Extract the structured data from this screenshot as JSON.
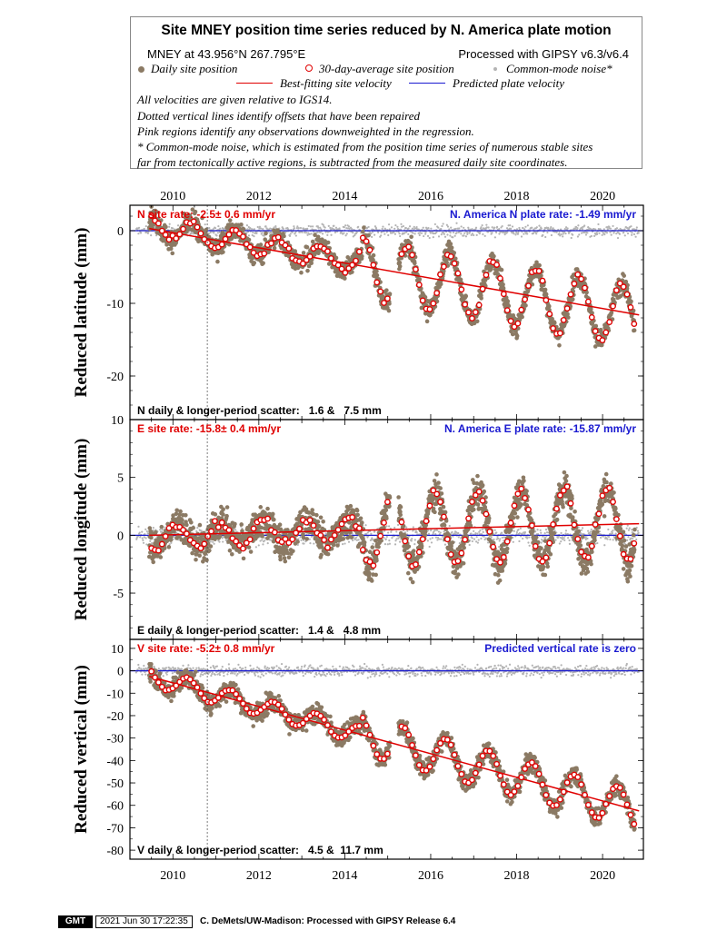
{
  "legend": {
    "title": "Site MNEY position time series reduced by N. America plate motion",
    "site_line": "MNEY at 43.956°N 267.795°E",
    "processed": "Processed with GIPSY v6.3/v6.4",
    "daily": "Daily site position",
    "avg": "30-day-average site position",
    "cm": "Common-mode noise*",
    "best": "Best-fitting site velocity",
    "pred": "Predicted plate velocity",
    "notes": [
      "All velocities are given relative to IGS14.",
      "Dotted vertical lines identify offsets that have been repaired",
      "Pink regions identify any observations downweighted in the regression.",
      "* Common-mode noise, which is estimated from the position time series of numerous stable sites",
      "far from tectonically active regions, is subtracted from the measured daily site coordinates."
    ]
  },
  "colors": {
    "daily": "#8b7a64",
    "avg_edge": "#e00000",
    "cm": "#b4b4b4",
    "best": "#e00000",
    "pred": "#1a1ad0",
    "label_red": "#e00000",
    "label_blue": "#1a1ad0"
  },
  "footer": {
    "logo": "GMT",
    "stamp": "2021 Jun 30 17:22:35",
    "credit": "C. DeMets/UW-Madison: Processed with GIPSY Release 6.4"
  },
  "chart_data": [
    {
      "type": "scatter",
      "ylabel": "Reduced latitude (mm)",
      "xlim": [
        2009.0,
        2020.95
      ],
      "ylim": [
        -26,
        3.5
      ],
      "x_ticks": [
        "2010",
        "2012",
        "2014",
        "2016",
        "2018",
        "2020"
      ],
      "y_ticks": [
        "0",
        "-10",
        "-20"
      ],
      "rate_label": "N site rate:  -2.5± 0.6 mm/yr",
      "plate_label": "N. America N plate rate: -1.49 mm/yr",
      "scatter_label": "N daily & longer-period scatter:   1.6 &   7.5 mm",
      "best_fit": [
        [
          2009.45,
          0.3
        ],
        [
          2020.85,
          -11.6
        ]
      ],
      "predicted": [
        [
          2009.0,
          0
        ],
        [
          2020.95,
          0
        ]
      ],
      "offset_epoch": 2010.8,
      "seasonal": {
        "mode": "north",
        "amplitude_early": 1.6,
        "amplitude_late": 4.6,
        "amp_start_year": 2014.4
      }
    },
    {
      "type": "scatter",
      "ylabel": "Reduced longitude (mm)",
      "xlim": [
        2009.0,
        2020.95
      ],
      "ylim": [
        -9,
        10
      ],
      "x_ticks": [],
      "y_ticks": [
        "10",
        "5",
        "0",
        "-5"
      ],
      "rate_label": "E site rate: -15.8± 0.4 mm/yr",
      "plate_label": "N. America E plate rate: -15.87 mm/yr",
      "scatter_label": "E daily & longer-period scatter:   1.4 &   4.8 mm",
      "best_fit": [
        [
          2009.45,
          0.0
        ],
        [
          2020.85,
          1.0
        ]
      ],
      "predicted": [
        [
          2009.0,
          0
        ],
        [
          2020.95,
          0
        ]
      ],
      "offset_epoch": 2010.8,
      "seasonal": {
        "mode": "east",
        "amplitude_early": 1.0,
        "amplitude_late": 3.1,
        "amp_start_year": 2014.4
      }
    },
    {
      "type": "scatter",
      "ylabel": "Reduced vertical (mm)",
      "xlim": [
        2009.0,
        2020.95
      ],
      "ylim": [
        -84,
        14
      ],
      "x_ticks": [
        "2010",
        "2012",
        "2014",
        "2016",
        "2018",
        "2020"
      ],
      "y_ticks": [
        "10",
        "0",
        "-10",
        "-20",
        "-30",
        "-40",
        "-50",
        "-60",
        "-70",
        "-80"
      ],
      "rate_label": "V site rate:  -5.2± 0.8 mm/yr",
      "plate_label": "Predicted vertical rate is zero",
      "scatter_label": "V daily & longer-period scatter:   4.5 &  11.7 mm",
      "best_fit": [
        [
          2009.45,
          -2.5
        ],
        [
          2020.85,
          -62.5
        ]
      ],
      "predicted": [
        [
          2009.0,
          0
        ],
        [
          2020.95,
          0
        ]
      ],
      "offset_epoch": 2010.8,
      "seasonal": {
        "mode": "vertical",
        "amplitude_early": 4.0,
        "amplitude_late": 8.5,
        "amp_start_year": 2014.4
      }
    }
  ]
}
